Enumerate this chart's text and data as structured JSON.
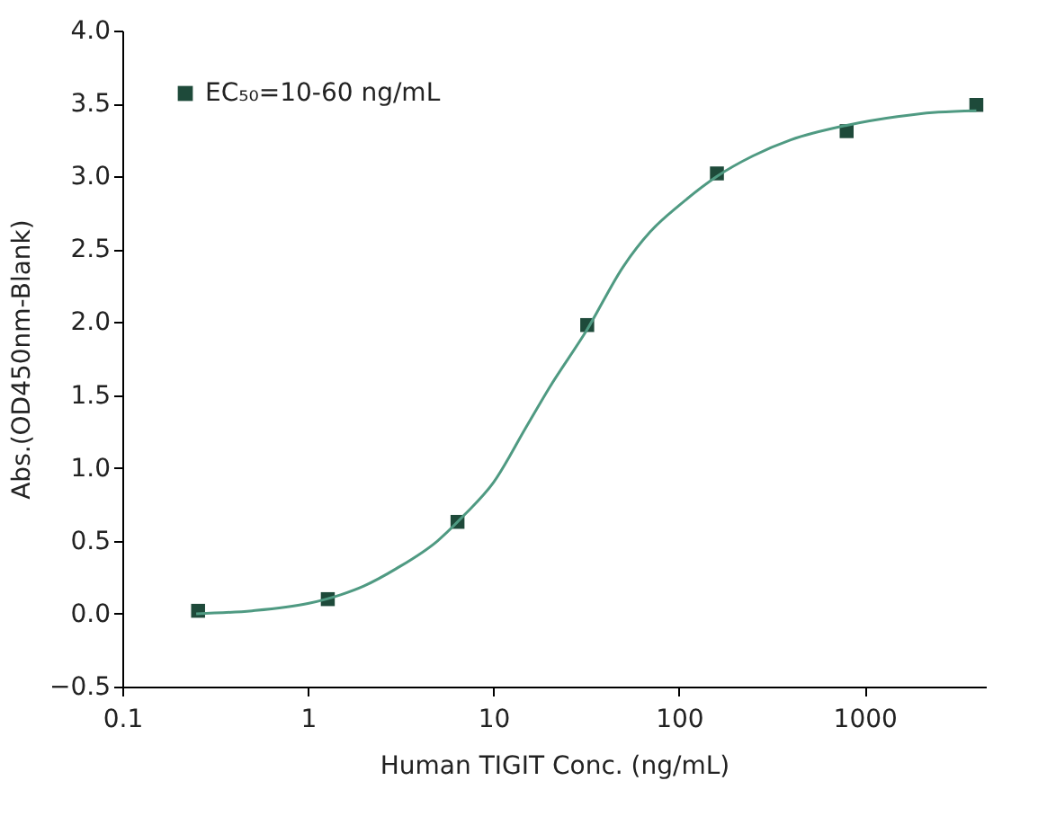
{
  "chart_data": {
    "type": "scatter",
    "xlabel": "Human TIGIT Conc. (ng/mL)",
    "ylabel": "Abs.(OD450nm-Blank)",
    "log": "x",
    "xlim": [
      0.1,
      4500
    ],
    "xticks": [
      0.1,
      1,
      10,
      100,
      1000
    ],
    "ylim": [
      -0.5,
      4.0
    ],
    "yticks": [
      {
        "value": -0.5,
        "label": "−0.5"
      },
      {
        "value": 0,
        "label": "0.0"
      },
      {
        "value": 0.5,
        "label": "0.5"
      },
      {
        "value": 1,
        "label": "1.0"
      },
      {
        "value": 1.5,
        "label": "1.5"
      },
      {
        "value": 2,
        "label": "2.0"
      },
      {
        "value": 2.5,
        "label": "2.5"
      },
      {
        "value": 3,
        "label": "3.0"
      },
      {
        "value": 3.5,
        "label": "3.5"
      },
      {
        "value": 4,
        "label": "4.0"
      }
    ],
    "grid": false,
    "legend": "top left",
    "marker": "square",
    "series": [
      {
        "name": "EC₅₀=10-60 ng/mL",
        "type": "scatter",
        "color": "#1e4a3a",
        "x": [
          0.256,
          1.28,
          6.4,
          32,
          160,
          800,
          4000
        ],
        "values": [
          0.02,
          0.1,
          0.63,
          1.98,
          3.02,
          3.31,
          3.49
        ]
      },
      {
        "type": "line",
        "color": "#4f9a82",
        "line_style": "solid",
        "marker": "none",
        "x": [
          0.25,
          0.5,
          1,
          1.5,
          2,
          3,
          5,
          7,
          10,
          15,
          20,
          32,
          50,
          70,
          100,
          160,
          250,
          400,
          800,
          1500,
          2500,
          4000
        ],
        "values": [
          0.0,
          0.02,
          0.07,
          0.13,
          0.19,
          0.31,
          0.5,
          0.68,
          0.9,
          1.28,
          1.55,
          1.95,
          2.38,
          2.62,
          2.8,
          3.0,
          3.14,
          3.25,
          3.35,
          3.41,
          3.44,
          3.45
        ]
      }
    ]
  }
}
